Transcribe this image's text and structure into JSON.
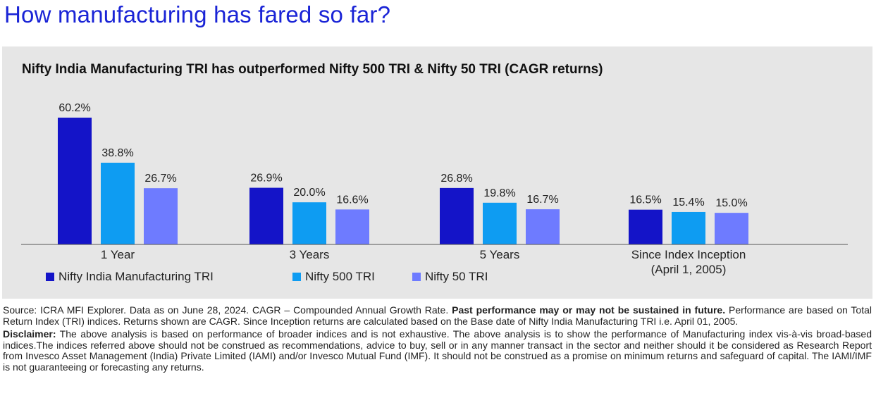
{
  "page_title": "How manufacturing has fared so far?",
  "chart_data": {
    "type": "bar",
    "title": "Nifty India Manufacturing TRI has outperformed Nifty 500 TRI & Nifty 50 TRI (CAGR returns)",
    "categories": [
      [
        "1 Year"
      ],
      [
        "3 Years"
      ],
      [
        "5 Years"
      ],
      [
        "Since Index Inception",
        "(April 1, 2005)"
      ]
    ],
    "series": [
      {
        "name": "Nifty India Manufacturing TRI",
        "color": "#1414c8",
        "values": [
          60.2,
          26.9,
          26.8,
          16.5
        ]
      },
      {
        "name": "Nifty 500 TRI",
        "color": "#0e9cf2",
        "values": [
          38.8,
          20.0,
          19.8,
          15.4
        ]
      },
      {
        "name": "Nifty 50 TRI",
        "color": "#6e7bff",
        "values": [
          26.7,
          16.6,
          16.7,
          15.0
        ]
      }
    ],
    "value_suffix": "%",
    "ylim": [
      0,
      60.2
    ],
    "legend_position": "bottom-left",
    "grid": false
  },
  "footer": {
    "source_text": "Source: ICRA MFI Explorer. Data as on June 28, 2024. CAGR – Compounded Annual Growth Rate.",
    "source_bold": "Past performance may or may not be sustained in future.",
    "source_rest": "Performance are based on Total Return Index (TRI) indices. Returns shown are CAGR. Since Inception returns are calculated based on the Base date of Nifty India Manufacturing TRI i.e. April 01, 2005.",
    "disclaimer_label": "Disclaimer:",
    "disclaimer_text": "The above analysis is based on performance of broader indices and is not exhaustive. The above analysis is to show the performance of Manufacturing index vis-à-vis broad-based indices.The indices referred above should not be construed as recommendations, advice to buy, sell or in any manner transact in the sector and neither should it be considered as Research Report from Invesco Asset Management (India) Private Limited (IAMI) and/or Invesco Mutual Fund (IMF). It should not be construed as a promise on minimum returns and safeguard of capital. The IAMI/IMF is not guaranteeing or forecasting any returns."
  }
}
